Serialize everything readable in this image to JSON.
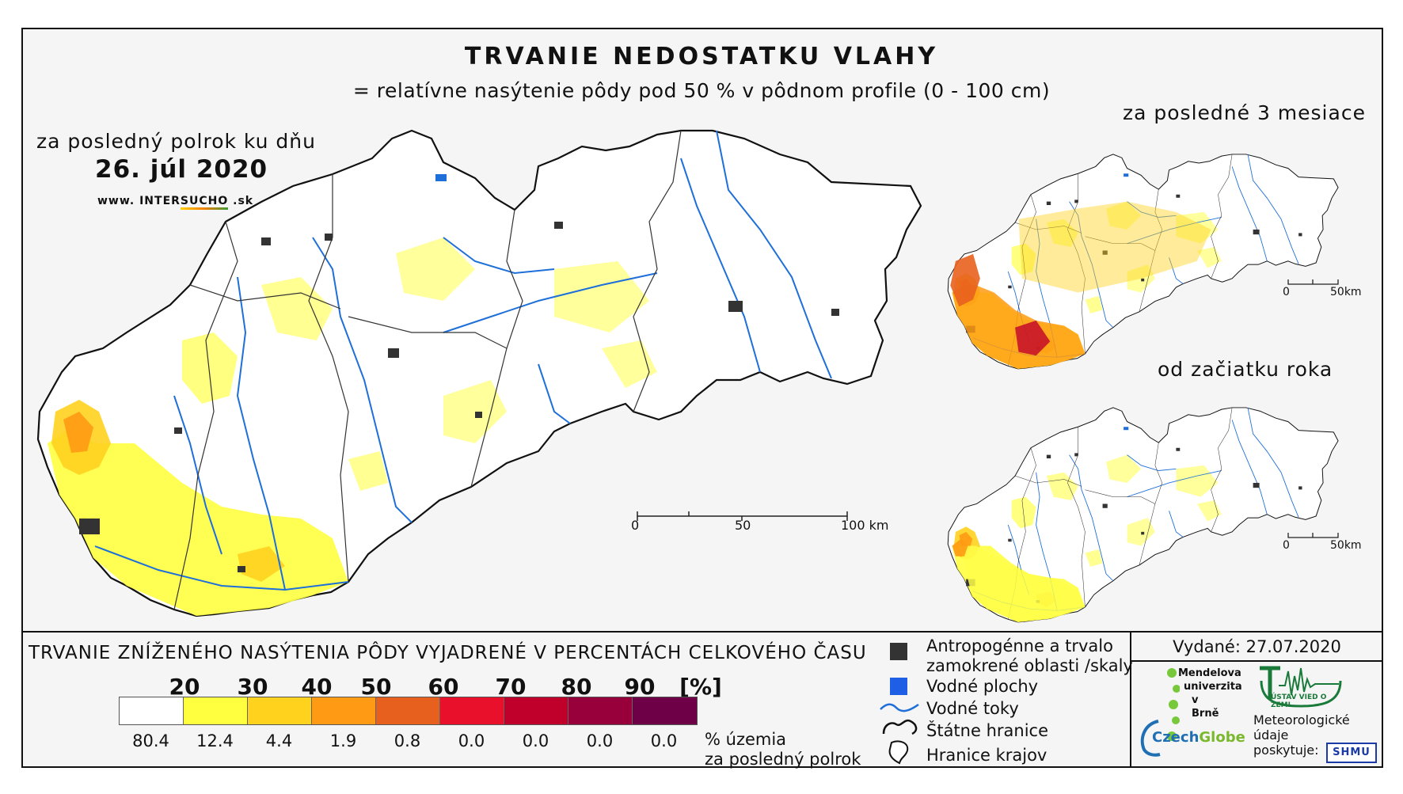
{
  "title": "TRVANIE NEDOSTATKU VLAHY",
  "subtitle": "= relatívne nasýtenie pôdy pod 50 % v pôdnom profile (0 - 100 cm)",
  "main_map": {
    "period_label": "za posledný polrok ku dňu",
    "date": "26. júl 2020",
    "website": {
      "prefix": "www. INTER",
      "brand": "SUCHO",
      "suffix": " .sk"
    },
    "scale": {
      "ticks": [
        "0",
        "50",
        "100 km"
      ]
    }
  },
  "inset_top": {
    "label": "za posledné 3 mesiace",
    "scale": {
      "ticks": [
        "0",
        "50km"
      ]
    }
  },
  "inset_bottom": {
    "label": "od začiatku roka",
    "scale": {
      "ticks": [
        "0",
        "50km"
      ]
    }
  },
  "legend": {
    "title": "TRVANIE ZNÍŽENÉHO NASÝTENIA PÔDY VYJADRENÉ V PERCENTÁCH CELKOVÉHO ČASU",
    "bin_labels": [
      "20",
      "30",
      "40",
      "50",
      "60",
      "70",
      "80",
      "90",
      "[%]"
    ],
    "colors": [
      "#ffffff",
      "#ffff40",
      "#ffd21e",
      "#ff9a14",
      "#e8601e",
      "#e8102a",
      "#c0002a",
      "#98003c",
      "#6e0048"
    ],
    "territory_percent": [
      "80.4",
      "12.4",
      "4.4",
      "1.9",
      "0.8",
      "0.0",
      "0.0",
      "0.0",
      "0.0"
    ],
    "territory_note_line1": "% územia",
    "territory_note_line2": "za posledný polrok"
  },
  "key": {
    "anthropogenic_line1": "Antropogénne a trvalo",
    "anthropogenic_line2": "zamokrené oblasti /skaly",
    "water_bodies": "Vodné plochy",
    "water_courses": "Vodné toky",
    "state_border": "Štátne hranice",
    "region_border": "Hranice krajov"
  },
  "issued": "Vydané: 27.07.2020",
  "logos": {
    "mendel_line1": "Mendelova",
    "mendel_line2": "univerzita",
    "mendel_line3": "v Brně",
    "ustav": "ÚSTAV VIED O ZEMI",
    "czechglobe_a": "Czech",
    "czechglobe_b": "Globe",
    "meteo_line1": "Meteorologické",
    "meteo_line2": "údaje",
    "meteo_line3": "poskytuje:",
    "shmu": "SHMU"
  }
}
